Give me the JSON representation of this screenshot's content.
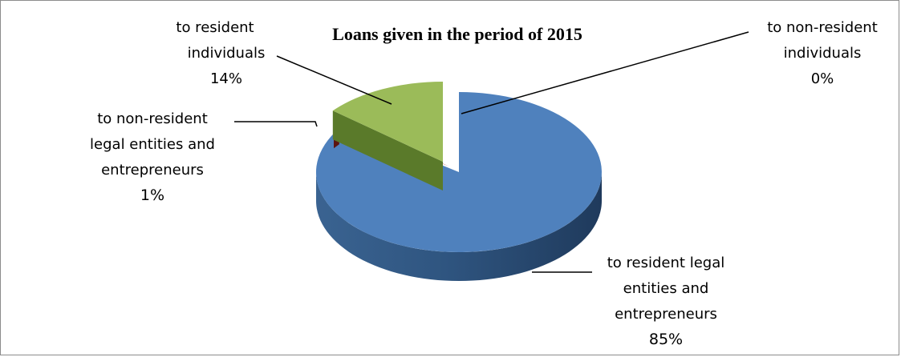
{
  "chart_data": {
    "type": "pie",
    "title": "Loans given in the period of 2015",
    "series": [
      {
        "name": "to resident legal entities and entrepreneurs",
        "label_lines": [
          "to resident legal",
          "entities and",
          "entrepreneurs"
        ],
        "value": 85,
        "value_label": "85%",
        "color": "#4f81bd"
      },
      {
        "name": "to non-resident legal entities and entrepreneurs",
        "label_lines": [
          "to non-resident",
          "legal entities and",
          "entrepreneurs"
        ],
        "value": 1,
        "value_label": "1%",
        "color": "#c0504d"
      },
      {
        "name": "to resident individuals",
        "label_lines": [
          "to resident",
          "individuals"
        ],
        "value": 14,
        "value_label": "14%",
        "color": "#9bbb59"
      },
      {
        "name": "to non-resident individuals",
        "label_lines": [
          "to non-resident",
          "individuals"
        ],
        "value": 0,
        "value_label": "0%",
        "color": "#8064a2"
      }
    ],
    "legend": "none",
    "style": "3d-exploded"
  }
}
